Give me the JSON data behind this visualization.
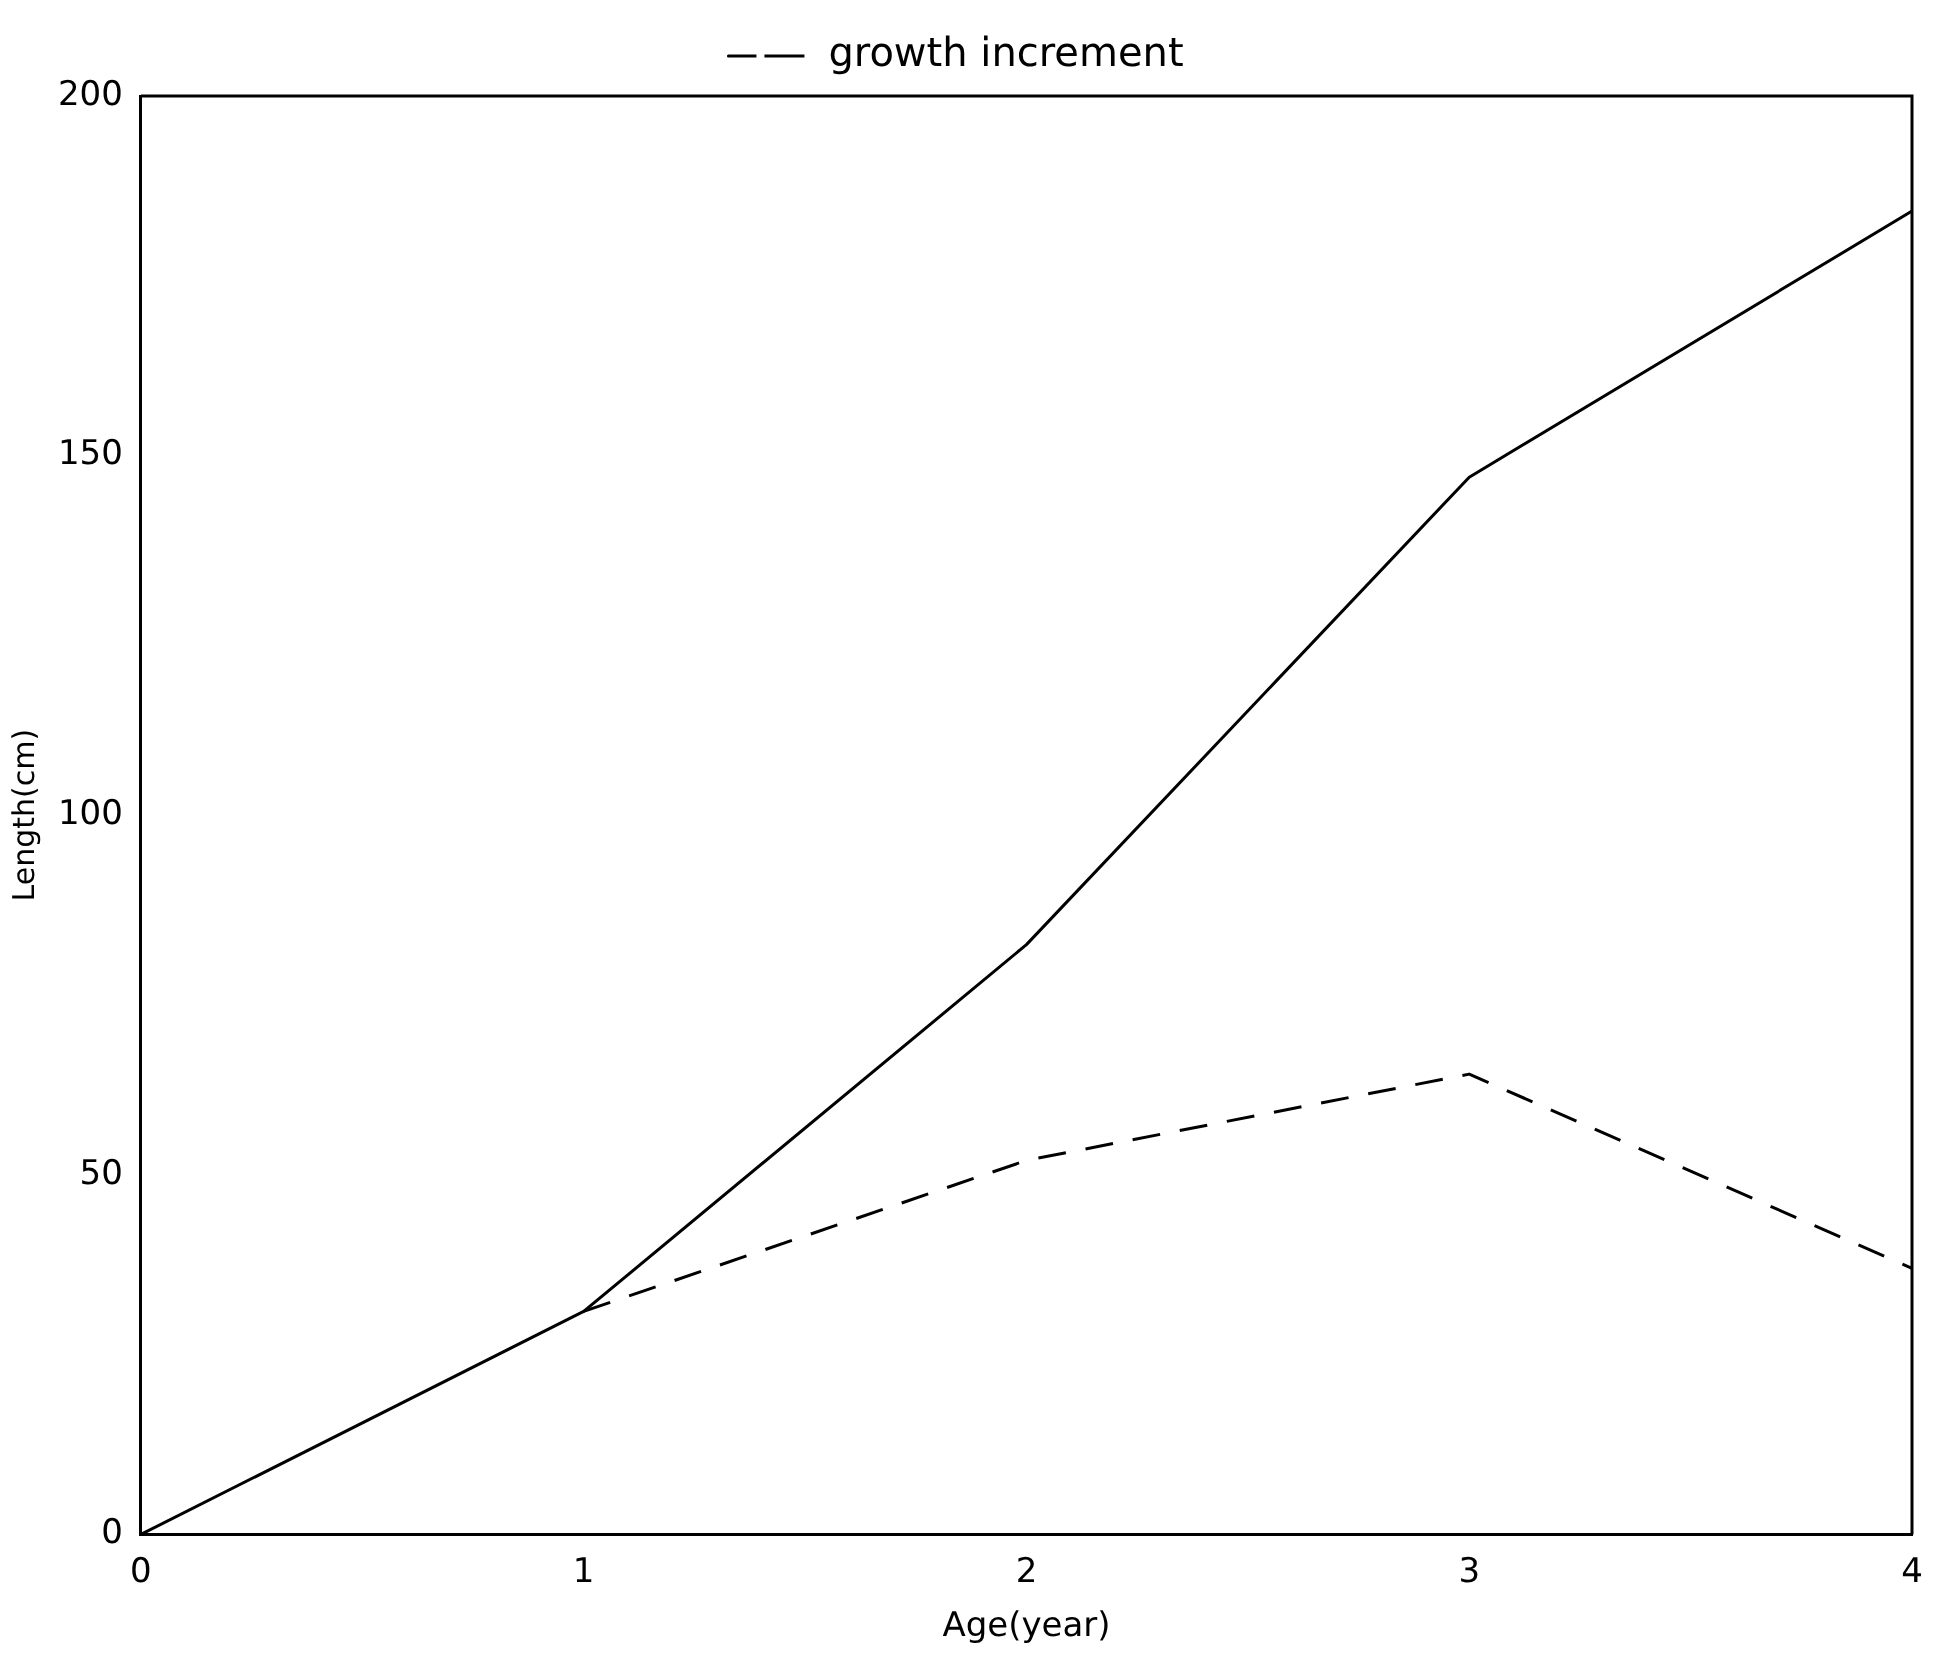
{
  "chart_data": {
    "type": "line",
    "xlabel": "Age(year)",
    "ylabel": "Length(cm)",
    "x": [
      0,
      1,
      2,
      3,
      4
    ],
    "series": [
      {
        "color": "#000000",
        "values": [
          0,
          31,
          82,
          147,
          184
        ],
        "line_style": "solid"
      },
      {
        "name": "growth increment",
        "color": "#000000",
        "x": [
          1,
          2,
          3,
          4
        ],
        "values": [
          31,
          52,
          64,
          37
        ],
        "line_style": "dashed"
      }
    ],
    "xlim": [
      0,
      4
    ],
    "xticks": [
      0,
      1,
      2,
      3,
      4
    ],
    "ylim": [
      0,
      200
    ],
    "yticks": [
      0,
      50,
      100,
      150,
      200
    ],
    "grid": false,
    "legend": "top",
    "marker": "none"
  }
}
